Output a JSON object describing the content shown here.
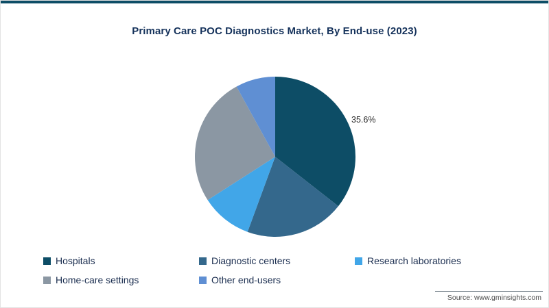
{
  "page": {
    "accent_color": "#0d4d66"
  },
  "chart_data": {
    "type": "pie",
    "title": "Primary Care POC Diagnostics Market, By End-use (2023)",
    "labels": [
      "Hospitals",
      "Diagnostic centers",
      "Research laboratories",
      "Home-care settings",
      "Other end-users"
    ],
    "values": [
      35.6,
      20.0,
      10.3,
      26.1,
      8.0
    ],
    "colors": [
      "#0d4d66",
      "#34688c",
      "#41a6e8",
      "#8b97a3",
      "#5f8fd3"
    ],
    "start_angle_deg": 0,
    "direction": "clockwise",
    "data_labels": [
      {
        "index": 0,
        "text": "35.6%"
      }
    ],
    "legend_position": "bottom"
  },
  "source": {
    "text": "Source: www.gminsights.com"
  }
}
